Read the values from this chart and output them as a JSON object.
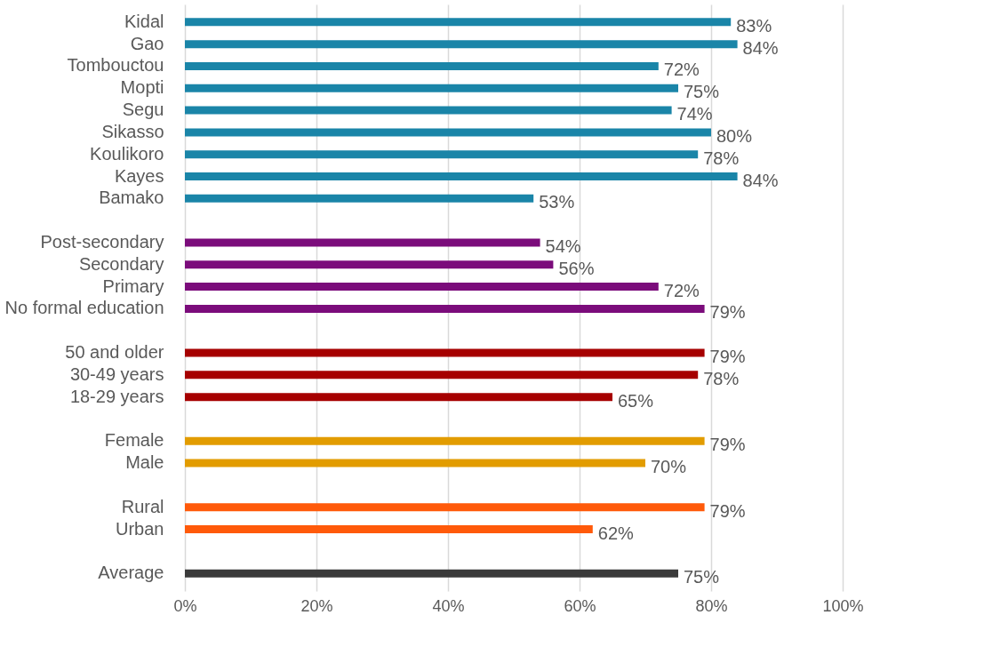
{
  "chart_data": {
    "type": "bar",
    "orientation": "horizontal",
    "categories": [
      "Kidal",
      "Gao",
      "Tombouctou",
      "Mopti",
      "Segu",
      "Sikasso",
      "Koulikoro",
      "Kayes",
      "Bamako",
      null,
      "Post-secondary",
      "Secondary",
      "Primary",
      "No formal education",
      null,
      "50 and older",
      "30-49 years",
      "18-29 years",
      null,
      "Female",
      "Male",
      null,
      "Rural",
      "Urban",
      null,
      "Average"
    ],
    "values": [
      83,
      84,
      72,
      75,
      74,
      80,
      78,
      84,
      53,
      null,
      54,
      56,
      72,
      79,
      null,
      79,
      78,
      65,
      null,
      79,
      70,
      null,
      79,
      62,
      null,
      75
    ],
    "value_labels": [
      "83%",
      "84%",
      "72%",
      "75%",
      "74%",
      "80%",
      "78%",
      "84%",
      "53%",
      null,
      "54%",
      "56%",
      "72%",
      "79%",
      null,
      "79%",
      "78%",
      "65%",
      null,
      "79%",
      "70%",
      null,
      "79%",
      "62%",
      null,
      "75%"
    ],
    "colors": [
      "#1a85a8",
      "#1a85a8",
      "#1a85a8",
      "#1a85a8",
      "#1a85a8",
      "#1a85a8",
      "#1a85a8",
      "#1a85a8",
      "#1a85a8",
      null,
      "#7b0c7b",
      "#7b0c7b",
      "#7b0c7b",
      "#7b0c7b",
      null,
      "#a60000",
      "#a60000",
      "#a60000",
      null,
      "#e29c00",
      "#e29c00",
      null,
      "#ff5a0a",
      "#ff5a0a",
      null,
      "#3a3a3a"
    ],
    "xlim": [
      0,
      100
    ],
    "xticks": [
      {
        "value": 0,
        "label": "0%"
      },
      {
        "value": 20,
        "label": "20%"
      },
      {
        "value": 40,
        "label": "40%"
      },
      {
        "value": 60,
        "label": "60%"
      },
      {
        "value": 80,
        "label": "80%"
      },
      {
        "value": 100,
        "label": "100%"
      }
    ],
    "grid": "x"
  }
}
